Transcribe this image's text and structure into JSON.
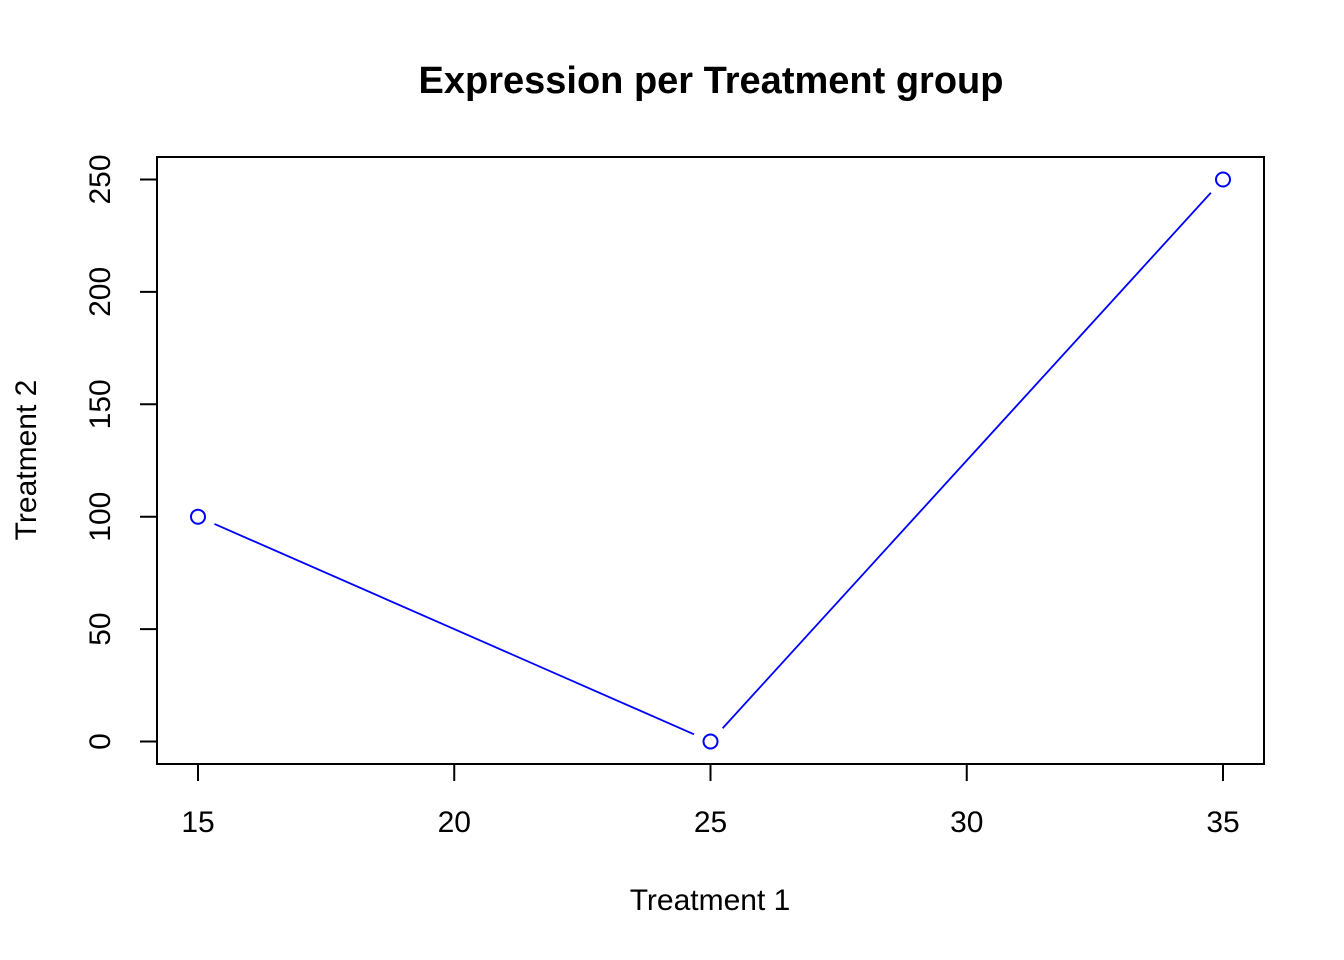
{
  "chart_data": {
    "type": "line",
    "title": "Expression per Treatment group",
    "xlabel": "Treatment 1",
    "ylabel": "Treatment 2",
    "x": [
      15,
      25,
      35
    ],
    "y": [
      100,
      0,
      250
    ],
    "xlim": [
      14.2,
      35.8
    ],
    "ylim": [
      -10,
      260
    ],
    "x_ticks": [
      15,
      20,
      25,
      30,
      35
    ],
    "y_ticks": [
      0,
      50,
      100,
      150,
      200,
      250
    ],
    "x_tick_labels": [
      "15",
      "20",
      "25",
      "30",
      "35"
    ],
    "y_tick_labels": [
      "0",
      "50",
      "100",
      "150",
      "200",
      "250"
    ],
    "marker": "open-circle",
    "line_style": "solid-with-gaps-at-points",
    "grid": false,
    "legend": "none",
    "colors": {
      "series": "#0000ff",
      "axes": "#000000",
      "background": "#ffffff"
    }
  }
}
